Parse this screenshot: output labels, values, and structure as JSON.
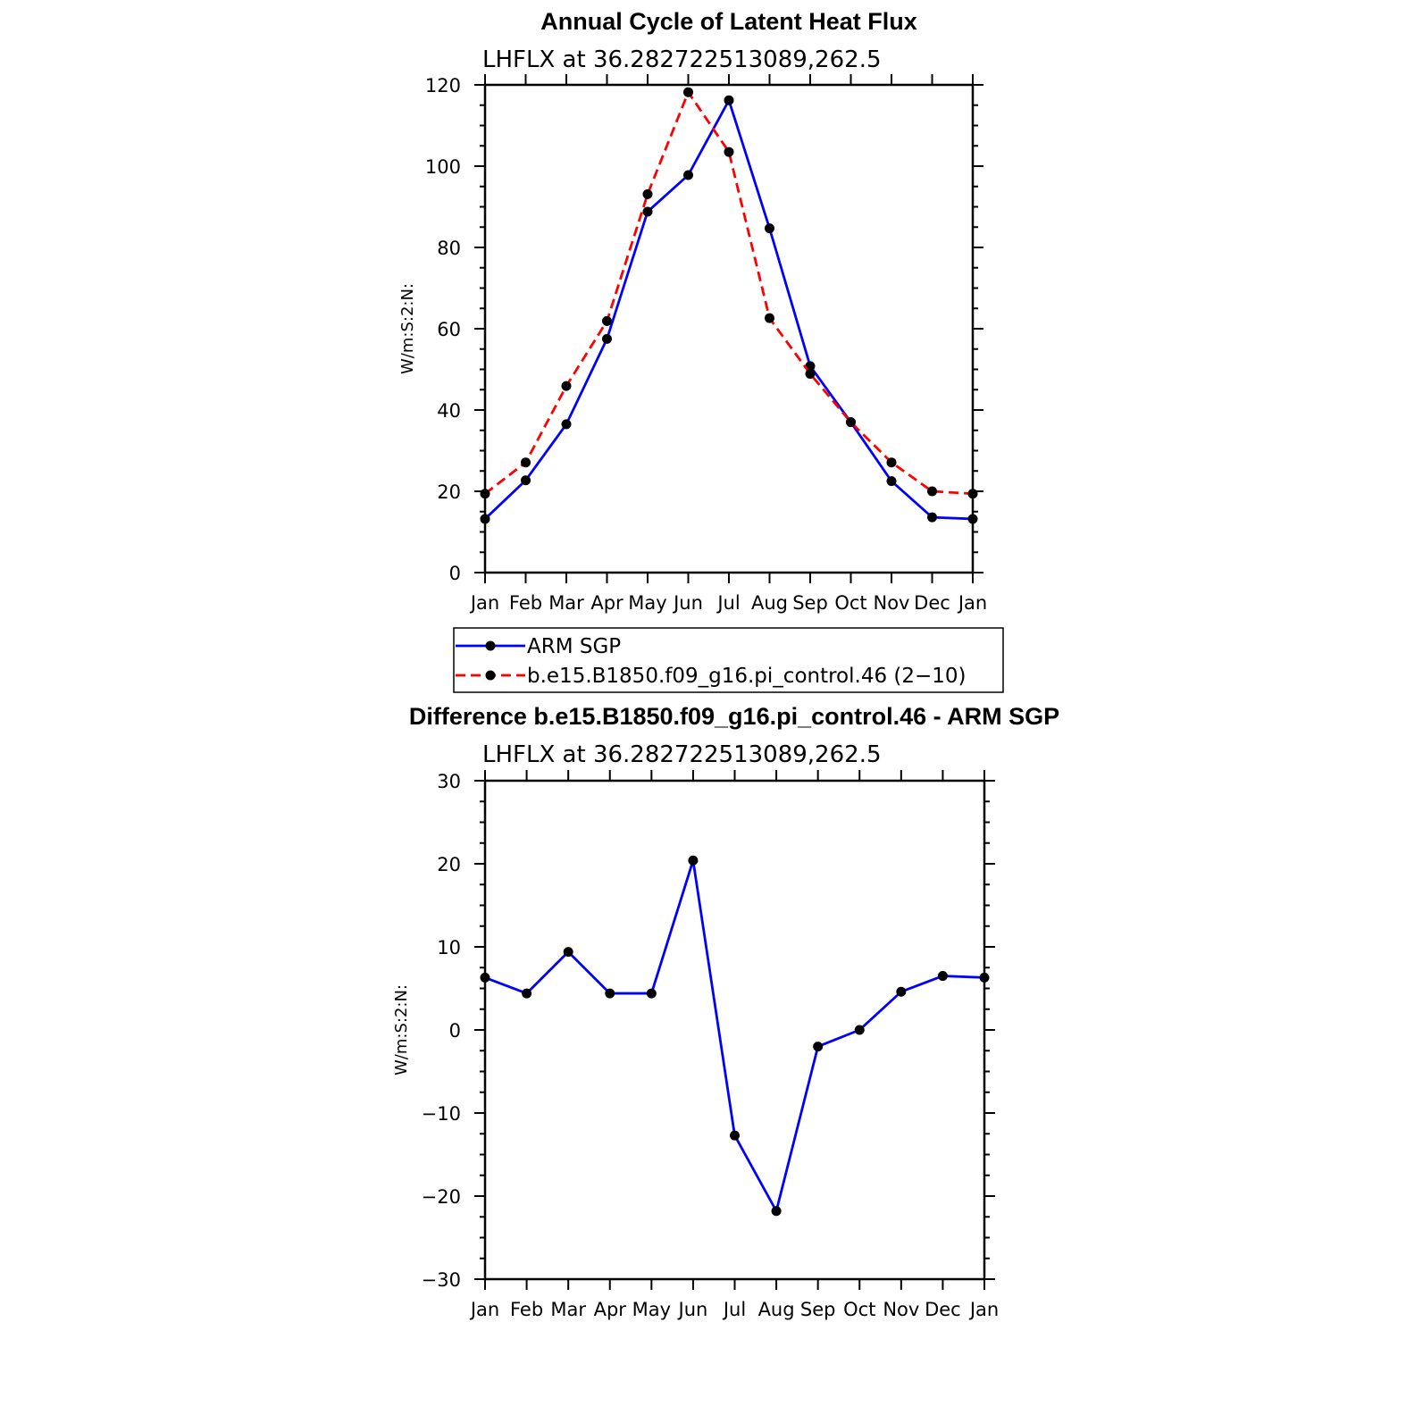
{
  "chart_data": [
    {
      "type": "line",
      "title": "Annual Cycle of Latent Heat Flux",
      "subtitle": "LHFLX at 36.282722513089,262.5",
      "ylabel": "W/m:S:2:N:",
      "xlabel": "",
      "categories": [
        "Jan",
        "Feb",
        "Mar",
        "Apr",
        "May",
        "Jun",
        "Jul",
        "Aug",
        "Sep",
        "Oct",
        "Nov",
        "Dec",
        "Jan"
      ],
      "ylim": [
        0,
        120
      ],
      "yticks": [
        "0",
        "20",
        "40",
        "60",
        "80",
        "100",
        "120"
      ],
      "legend_position": "bottom",
      "series": [
        {
          "name": "ARM SGP",
          "color": "#0000ff",
          "dash": "solid",
          "values": [
            13.2,
            22.7,
            36.5,
            57.5,
            88.8,
            97.8,
            116.2,
            84.7,
            50.8,
            37.0,
            22.5,
            13.6,
            13.2
          ]
        },
        {
          "name": "b.e15.B1850.f09_g16.pi_control.46 (2−10)",
          "color": "#ff0000",
          "dash": "dashed",
          "values": [
            19.4,
            27.1,
            45.9,
            61.9,
            93.1,
            118.2,
            103.5,
            62.6,
            48.9,
            37.0,
            27.1,
            20.0,
            19.4
          ]
        }
      ]
    },
    {
      "type": "line",
      "title": "Difference b.e15.B1850.f09_g16.pi_control.46 - ARM SGP",
      "subtitle": "LHFLX at 36.282722513089,262.5",
      "ylabel": "W/m:S:2:N:",
      "xlabel": "",
      "categories": [
        "Jan",
        "Feb",
        "Mar",
        "Apr",
        "May",
        "Jun",
        "Jul",
        "Aug",
        "Sep",
        "Oct",
        "Nov",
        "Dec",
        "Jan"
      ],
      "ylim": [
        -30,
        30
      ],
      "yticks": [
        "−30",
        "−20",
        "−10",
        "0",
        "10",
        "20",
        "30"
      ],
      "series": [
        {
          "name": "",
          "color": "#0000ff",
          "dash": "solid",
          "values": [
            6.3,
            4.4,
            9.4,
            4.4,
            4.4,
            20.4,
            -12.7,
            -21.8,
            -2.0,
            0.0,
            4.6,
            6.5,
            6.3
          ]
        }
      ]
    }
  ]
}
